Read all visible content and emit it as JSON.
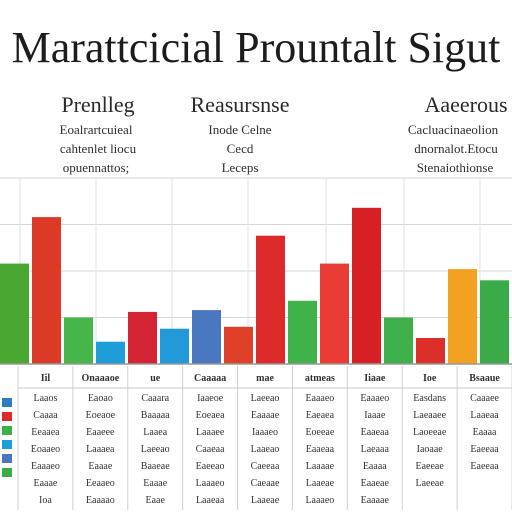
{
  "chart_data": {
    "type": "bar",
    "title": "Marattcicial Prountalt Sigut",
    "sections": [
      {
        "label": "Prenlleg",
        "notes": [
          "Eoalrartcuieal",
          "cahtenlet liocu",
          "opuennattos;"
        ]
      },
      {
        "label": "Reasursnse",
        "notes": [
          "Inode Celne",
          "Cecd",
          "Leceps"
        ]
      },
      {
        "label": "Aaeerous",
        "notes": [
          "Cacluacinaeolion",
          "dnornalot.Etocu",
          "Stenaiothionse"
        ]
      }
    ],
    "ylim": [
      0,
      100
    ],
    "grid": true,
    "bars": [
      {
        "value": 54,
        "color": "#4aa832"
      },
      {
        "value": 79,
        "color": "#dc3a26"
      },
      {
        "value": 25,
        "color": "#46b54a"
      },
      {
        "value": 12,
        "color": "#1e9ed8"
      },
      {
        "value": 28,
        "color": "#d42333"
      },
      {
        "value": 19,
        "color": "#229ad9"
      },
      {
        "value": 29,
        "color": "#4a78c0"
      },
      {
        "value": 20,
        "color": "#e04028"
      },
      {
        "value": 69,
        "color": "#dc2a2a"
      },
      {
        "value": 34,
        "color": "#3fb24a"
      },
      {
        "value": 54,
        "color": "#ea3b35"
      },
      {
        "value": 84,
        "color": "#d62023"
      },
      {
        "value": 25,
        "color": "#3db04a"
      },
      {
        "value": 14,
        "color": "#dc2f2a"
      },
      {
        "value": 51,
        "color": "#f2a21e"
      },
      {
        "value": 45,
        "color": "#3bab48"
      }
    ],
    "table": {
      "headers": [
        "Iil",
        "Onaaaoe",
        "ue",
        "Caaaaa",
        "mae",
        "atmeas",
        "Iiaae",
        "Ioe",
        "Bsaaue"
      ],
      "rows": [
        [
          "Laaos",
          "Eaoao",
          "Caaara",
          "Iaaeoe",
          "Laeeao",
          "Eaaaeo",
          "Eaaaeo",
          "Easdans",
          "Caaaee"
        ],
        [
          "Caaaa",
          "Eoeaoe",
          "Baaaaa",
          "Eoeaea",
          "Eaaaae",
          "Eaeaea",
          "Iaaae",
          "Laeaaee",
          "Laaeaa"
        ],
        [
          "Eeaaea",
          "Eaaeee",
          "Laaea",
          "Laaaee",
          "Iaaaeo",
          "Eoeeae",
          "Eaaeaa",
          "Laoeeae",
          "Eaaaa"
        ],
        [
          "Eoaaeo",
          "Laaaea",
          "Laeeao",
          "Caaeaa",
          "Laaeao",
          "Eaaeaa",
          "Laeaaa",
          "Iaoaae",
          "Eaeeaa"
        ],
        [
          "Eaaaeo",
          "Eaaae",
          "Baaeae",
          "Eaeeao",
          "Caeeaa",
          "Laaaae",
          "Eaaaa",
          "Eaeeae",
          "Eaeeaa"
        ],
        [
          "Eaaae",
          "Eeaaeo",
          "Eaaae",
          "Laaaeo",
          "Caeaae",
          "Laaeae",
          "Eaaeae",
          "Laeeae",
          ""
        ],
        [
          "Ioa",
          "Eaaaao",
          "Eaae",
          "Laaeaa",
          "Laaeae",
          "Laaaeo",
          "Eaaaae",
          "",
          ""
        ]
      ]
    }
  }
}
